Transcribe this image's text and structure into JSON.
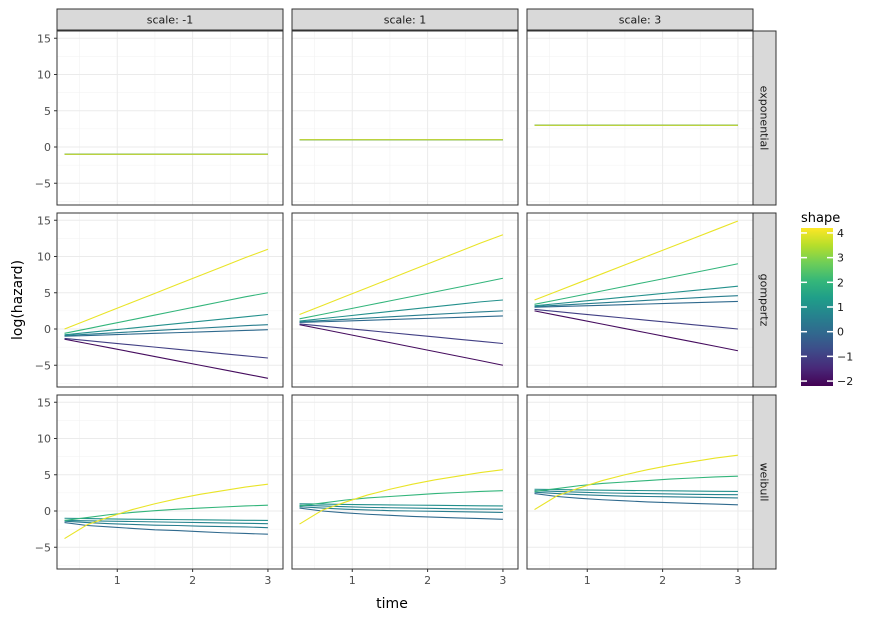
{
  "chart_data": {
    "type": "line",
    "facet_columns": [
      "scale: -1",
      "scale: 1",
      "scale: 3"
    ],
    "facet_rows": [
      "exponential",
      "gompertz",
      "weibull"
    ],
    "xlabel": "time",
    "ylabel": "log(hazard)",
    "xlim": [
      0.2,
      3.2
    ],
    "ylim": [
      -8,
      16
    ],
    "x_ticks": [
      1,
      2,
      3
    ],
    "y_ticks": [
      -5,
      0,
      5,
      10,
      15
    ],
    "x_tick_labels": [
      "1",
      "2",
      "3"
    ],
    "y_tick_labels": [
      "−5",
      "0",
      "5",
      "10",
      "15"
    ],
    "grid": true,
    "x": [
      0.3,
      0.6,
      0.9,
      1.2,
      1.5,
      1.8,
      2.1,
      2.4,
      2.7,
      3.0
    ],
    "legend": {
      "title": "shape",
      "position": "right",
      "colorbar_range": [
        -2.2,
        4.2
      ],
      "ticks": [
        4,
        3,
        2,
        1,
        0,
        -1,
        -2
      ],
      "tick_labels": [
        "4",
        "3",
        "2",
        "1",
        "0",
        "−1",
        "−2"
      ]
    },
    "colormap": [
      "#440154",
      "#482878",
      "#3e4a89",
      "#31688e",
      "#26828e",
      "#1f9e89",
      "#35b779",
      "#6ece58",
      "#b5de2b",
      "#fde725"
    ],
    "series_shapes": [
      -2,
      -1,
      0,
      0.5,
      1,
      2,
      4
    ],
    "panels": [
      {
        "row": "exponential",
        "col": "scale: -1",
        "lines": [
          {
            "shape": -2,
            "y": [
              -1,
              -1,
              -1,
              -1,
              -1,
              -1,
              -1,
              -1,
              -1,
              -1
            ]
          },
          {
            "shape": -1,
            "y": [
              -1,
              -1,
              -1,
              -1,
              -1,
              -1,
              -1,
              -1,
              -1,
              -1
            ]
          },
          {
            "shape": 0,
            "y": [
              -1,
              -1,
              -1,
              -1,
              -1,
              -1,
              -1,
              -1,
              -1,
              -1
            ]
          },
          {
            "shape": 0.5,
            "y": [
              -1,
              -1,
              -1,
              -1,
              -1,
              -1,
              -1,
              -1,
              -1,
              -1
            ]
          },
          {
            "shape": 1,
            "y": [
              -1,
              -1,
              -1,
              -1,
              -1,
              -1,
              -1,
              -1,
              -1,
              -1
            ]
          },
          {
            "shape": 2,
            "y": [
              -1,
              -1,
              -1,
              -1,
              -1,
              -1,
              -1,
              -1,
              -1,
              -1
            ]
          },
          {
            "shape": 4,
            "y": [
              -1,
              -1,
              -1,
              -1,
              -1,
              -1,
              -1,
              -1,
              -1,
              -1
            ]
          }
        ]
      },
      {
        "row": "exponential",
        "col": "scale: 1",
        "lines": [
          {
            "shape": -2,
            "y": [
              1,
              1,
              1,
              1,
              1,
              1,
              1,
              1,
              1,
              1
            ]
          },
          {
            "shape": -1,
            "y": [
              1,
              1,
              1,
              1,
              1,
              1,
              1,
              1,
              1,
              1
            ]
          },
          {
            "shape": 0,
            "y": [
              1,
              1,
              1,
              1,
              1,
              1,
              1,
              1,
              1,
              1
            ]
          },
          {
            "shape": 0.5,
            "y": [
              1,
              1,
              1,
              1,
              1,
              1,
              1,
              1,
              1,
              1
            ]
          },
          {
            "shape": 1,
            "y": [
              1,
              1,
              1,
              1,
              1,
              1,
              1,
              1,
              1,
              1
            ]
          },
          {
            "shape": 2,
            "y": [
              1,
              1,
              1,
              1,
              1,
              1,
              1,
              1,
              1,
              1
            ]
          },
          {
            "shape": 4,
            "y": [
              1,
              1,
              1,
              1,
              1,
              1,
              1,
              1,
              1,
              1
            ]
          }
        ]
      },
      {
        "row": "exponential",
        "col": "scale: 3",
        "lines": [
          {
            "shape": -2,
            "y": [
              3,
              3,
              3,
              3,
              3,
              3,
              3,
              3,
              3,
              3
            ]
          },
          {
            "shape": -1,
            "y": [
              3,
              3,
              3,
              3,
              3,
              3,
              3,
              3,
              3,
              3
            ]
          },
          {
            "shape": 0,
            "y": [
              3,
              3,
              3,
              3,
              3,
              3,
              3,
              3,
              3,
              3
            ]
          },
          {
            "shape": 0.5,
            "y": [
              3,
              3,
              3,
              3,
              3,
              3,
              3,
              3,
              3,
              3
            ]
          },
          {
            "shape": 1,
            "y": [
              3,
              3,
              3,
              3,
              3,
              3,
              3,
              3,
              3,
              3
            ]
          },
          {
            "shape": 2,
            "y": [
              3,
              3,
              3,
              3,
              3,
              3,
              3,
              3,
              3,
              3
            ]
          },
          {
            "shape": 4,
            "y": [
              3,
              3,
              3,
              3,
              3,
              3,
              3,
              3,
              3,
              3
            ]
          }
        ]
      },
      {
        "row": "gompertz",
        "col": "scale: -1",
        "lines": [
          {
            "shape": -2,
            "y": [
              -1.4,
              -2.0,
              -2.6,
              -3.2,
              -3.8,
              -4.4,
              -5.0,
              -5.6,
              -6.2,
              -6.8
            ]
          },
          {
            "shape": -1,
            "y": [
              -1.3,
              -1.6,
              -1.9,
              -2.2,
              -2.5,
              -2.8,
              -3.1,
              -3.4,
              -3.7,
              -4.0
            ]
          },
          {
            "shape": 0,
            "y": [
              -1.0,
              -0.9,
              -0.8,
              -0.7,
              -0.6,
              -0.5,
              -0.4,
              -0.3,
              -0.2,
              -0.1
            ]
          },
          {
            "shape": 0.5,
            "y": [
              -0.9,
              -0.73,
              -0.56,
              -0.39,
              -0.22,
              -0.05,
              0.12,
              0.29,
              0.46,
              0.6
            ]
          },
          {
            "shape": 1,
            "y": [
              -0.8,
              -0.49,
              -0.18,
              0.13,
              0.44,
              0.75,
              1.06,
              1.37,
              1.68,
              2.0
            ]
          },
          {
            "shape": 2,
            "y": [
              -0.6,
              0.03,
              0.66,
              1.29,
              1.92,
              2.55,
              3.18,
              3.81,
              4.44,
              5.0
            ]
          },
          {
            "shape": 4,
            "y": [
              0.0,
              1.23,
              2.46,
              3.69,
              4.92,
              6.15,
              7.38,
              8.61,
              9.84,
              11.0
            ]
          }
        ]
      },
      {
        "row": "gompertz",
        "col": "scale: 1",
        "lines": [
          {
            "shape": -2,
            "y": [
              0.6,
              -0.02,
              -0.64,
              -1.26,
              -1.88,
              -2.5,
              -3.12,
              -3.74,
              -4.36,
              -5.0
            ]
          },
          {
            "shape": -1,
            "y": [
              0.7,
              0.4,
              0.1,
              -0.2,
              -0.5,
              -0.8,
              -1.1,
              -1.4,
              -1.7,
              -2.0
            ]
          },
          {
            "shape": 0,
            "y": [
              0.9,
              1.0,
              1.1,
              1.2,
              1.3,
              1.4,
              1.5,
              1.6,
              1.7,
              1.8
            ]
          },
          {
            "shape": 0.5,
            "y": [
              1.0,
              1.17,
              1.34,
              1.51,
              1.68,
              1.85,
              2.02,
              2.19,
              2.36,
              2.5
            ]
          },
          {
            "shape": 1,
            "y": [
              1.1,
              1.43,
              1.76,
              2.09,
              2.42,
              2.75,
              3.08,
              3.41,
              3.74,
              4.0
            ]
          },
          {
            "shape": 2,
            "y": [
              1.4,
              2.02,
              2.64,
              3.26,
              3.88,
              4.5,
              5.12,
              5.74,
              6.36,
              7.0
            ]
          },
          {
            "shape": 4,
            "y": [
              2.0,
              3.23,
              4.46,
              5.69,
              6.92,
              8.15,
              9.38,
              10.61,
              11.84,
              13.0
            ]
          }
        ]
      },
      {
        "row": "gompertz",
        "col": "scale: 3",
        "lines": [
          {
            "shape": -2,
            "y": [
              2.5,
              1.89,
              1.28,
              0.67,
              0.06,
              -0.55,
              -1.16,
              -1.77,
              -2.38,
              -3.0
            ]
          },
          {
            "shape": -1,
            "y": [
              2.7,
              2.4,
              2.1,
              1.8,
              1.5,
              1.2,
              0.9,
              0.6,
              0.3,
              0.0
            ]
          },
          {
            "shape": 0,
            "y": [
              3.0,
              3.09,
              3.18,
              3.27,
              3.36,
              3.45,
              3.54,
              3.63,
              3.72,
              3.8
            ]
          },
          {
            "shape": 0.5,
            "y": [
              3.1,
              3.27,
              3.44,
              3.61,
              3.78,
              3.95,
              4.12,
              4.29,
              4.46,
              4.6
            ]
          },
          {
            "shape": 1,
            "y": [
              3.2,
              3.5,
              3.8,
              4.1,
              4.4,
              4.7,
              5.0,
              5.3,
              5.6,
              5.9
            ]
          },
          {
            "shape": 2,
            "y": [
              3.4,
              4.02,
              4.64,
              5.26,
              5.88,
              6.5,
              7.12,
              7.74,
              8.36,
              9.0
            ]
          },
          {
            "shape": 4,
            "y": [
              4.0,
              5.21,
              6.42,
              7.63,
              8.84,
              10.05,
              11.26,
              12.47,
              13.68,
              14.9
            ]
          }
        ]
      },
      {
        "row": "weibull",
        "col": "scale: -1",
        "lines": [
          {
            "shape": 0,
            "y": [
              -1.6,
              -2.0,
              -2.2,
              -2.4,
              -2.6,
              -2.7,
              -2.85,
              -3.0,
              -3.1,
              -3.2
            ]
          },
          {
            "shape": 0.5,
            "y": [
              -1.4,
              -1.6,
              -1.75,
              -1.85,
              -1.95,
              -2.0,
              -2.1,
              -2.15,
              -2.2,
              -2.3
            ]
          },
          {
            "shape": 0.7,
            "y": [
              -1.3,
              -1.35,
              -1.4,
              -1.45,
              -1.5,
              -1.55,
              -1.6,
              -1.65,
              -1.7,
              -1.75
            ]
          },
          {
            "shape": 1,
            "y": [
              -1.0,
              -1.05,
              -1.1,
              -1.13,
              -1.16,
              -1.19,
              -1.22,
              -1.25,
              -1.28,
              -1.3
            ]
          },
          {
            "shape": 2,
            "y": [
              -1.3,
              -0.9,
              -0.5,
              -0.2,
              0.05,
              0.25,
              0.4,
              0.55,
              0.7,
              0.8
            ]
          },
          {
            "shape": 4,
            "y": [
              -3.8,
              -1.9,
              -0.8,
              0.2,
              1.0,
              1.7,
              2.3,
              2.8,
              3.3,
              3.7
            ]
          }
        ]
      },
      {
        "row": "weibull",
        "col": "scale: 1",
        "lines": [
          {
            "shape": 0,
            "y": [
              0.4,
              0.0,
              -0.25,
              -0.45,
              -0.6,
              -0.75,
              -0.85,
              -0.95,
              -1.05,
              -1.15
            ]
          },
          {
            "shape": 0.5,
            "y": [
              0.6,
              0.4,
              0.25,
              0.15,
              0.05,
              0.0,
              -0.05,
              -0.1,
              -0.15,
              -0.2
            ]
          },
          {
            "shape": 0.7,
            "y": [
              0.8,
              0.7,
              0.6,
              0.5,
              0.45,
              0.4,
              0.35,
              0.3,
              0.27,
              0.25
            ]
          },
          {
            "shape": 1,
            "y": [
              1.0,
              0.95,
              0.9,
              0.87,
              0.84,
              0.81,
              0.78,
              0.75,
              0.72,
              0.7
            ]
          },
          {
            "shape": 2,
            "y": [
              0.7,
              1.1,
              1.5,
              1.8,
              2.0,
              2.2,
              2.4,
              2.55,
              2.7,
              2.8
            ]
          },
          {
            "shape": 4,
            "y": [
              -1.8,
              0.1,
              1.2,
              2.2,
              3.0,
              3.7,
              4.3,
              4.8,
              5.3,
              5.7
            ]
          }
        ]
      },
      {
        "row": "weibull",
        "col": "scale: 3",
        "lines": [
          {
            "shape": 0,
            "y": [
              2.4,
              2.0,
              1.75,
              1.55,
              1.4,
              1.25,
              1.15,
              1.05,
              0.95,
              0.85
            ]
          },
          {
            "shape": 0.5,
            "y": [
              2.6,
              2.4,
              2.25,
              2.15,
              2.05,
              2.0,
              1.95,
              1.9,
              1.85,
              1.8
            ]
          },
          {
            "shape": 0.7,
            "y": [
              2.8,
              2.7,
              2.6,
              2.5,
              2.45,
              2.4,
              2.35,
              2.3,
              2.27,
              2.25
            ]
          },
          {
            "shape": 1,
            "y": [
              3.0,
              2.95,
              2.9,
              2.87,
              2.84,
              2.81,
              2.78,
              2.75,
              2.72,
              2.7
            ]
          },
          {
            "shape": 2,
            "y": [
              2.7,
              3.1,
              3.5,
              3.8,
              4.0,
              4.2,
              4.4,
              4.55,
              4.7,
              4.8
            ]
          },
          {
            "shape": 4,
            "y": [
              0.2,
              2.1,
              3.2,
              4.2,
              5.0,
              5.7,
              6.3,
              6.8,
              7.3,
              7.7
            ]
          }
        ]
      }
    ]
  }
}
